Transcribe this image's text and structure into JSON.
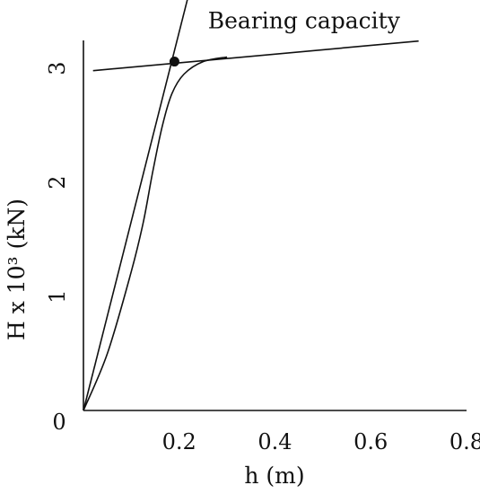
{
  "chart_data": {
    "type": "line",
    "title": "",
    "xlabel": "h (m)",
    "ylabel": "H x 10³ (kN)",
    "xlim": [
      0,
      0.8
    ],
    "ylim": [
      0,
      3.6
    ],
    "x_ticks": [
      {
        "value": 0.2,
        "label": "0.2"
      },
      {
        "value": 0.4,
        "label": "0.4"
      },
      {
        "value": 0.6,
        "label": "0.6"
      },
      {
        "value": 0.8,
        "label": "0.8"
      }
    ],
    "y_ticks": [
      {
        "value": 1,
        "label": "1"
      },
      {
        "value": 2,
        "label": "2"
      },
      {
        "value": 3,
        "label": "3"
      }
    ],
    "origin_label": "0",
    "grid": false,
    "series": [
      {
        "role": "load-settlement-curve",
        "points": [
          [
            0,
            0
          ],
          [
            0.05,
            0.5
          ],
          [
            0.1,
            1.22
          ],
          [
            0.125,
            1.65
          ],
          [
            0.145,
            2.1
          ],
          [
            0.165,
            2.5
          ],
          [
            0.185,
            2.78
          ],
          [
            0.21,
            2.95
          ],
          [
            0.25,
            3.06
          ],
          [
            0.3,
            3.1
          ]
        ]
      },
      {
        "role": "initial-tangent-line",
        "points": [
          [
            0,
            0
          ],
          [
            0.23,
            3.82
          ]
        ]
      },
      {
        "role": "final-tangent-line",
        "points": [
          [
            0.02,
            2.98
          ],
          [
            0.7,
            3.24
          ]
        ]
      }
    ],
    "annotations": [
      {
        "text": "Bearing capacity",
        "x": 0.26,
        "y": 3.35,
        "marker": {
          "x": 0.19,
          "y": 3.06
        }
      }
    ]
  }
}
